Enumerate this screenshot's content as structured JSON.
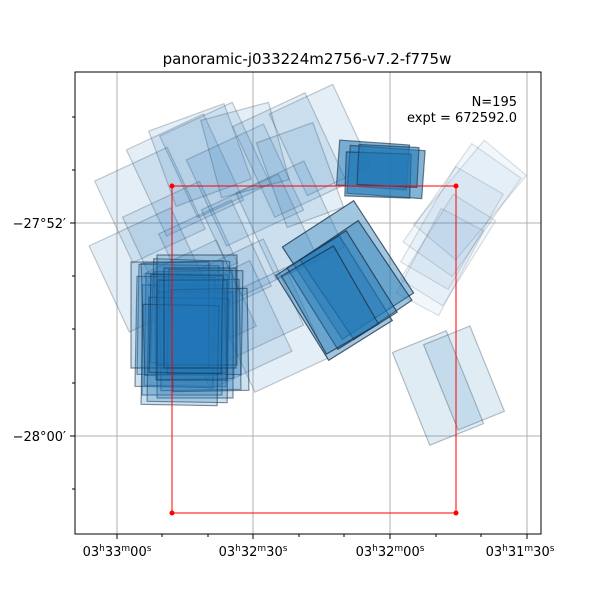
{
  "chart_data": {
    "type": "scatter",
    "title": "panoramic-j033224m2756-v7.2-f775w",
    "annotation": {
      "n_label": "N=195",
      "expt_label": "expt = 672592.0"
    },
    "grid": true,
    "x_axis": {
      "units": "RA (h m s)",
      "inverted": true,
      "range": [
        "03h33m15s",
        "03h31m26s"
      ],
      "ticks": [
        {
          "h": "03",
          "m": "33",
          "s": "00"
        },
        {
          "h": "03",
          "m": "32",
          "s": "30"
        },
        {
          "h": "03",
          "m": "32",
          "s": "00"
        },
        {
          "h": "03",
          "m": "31",
          "s": "30"
        }
      ]
    },
    "y_axis": {
      "units": "Dec",
      "range": [
        "-28d04m",
        "-27d49m"
      ],
      "ticks": [
        {
          "label": "−27°52′"
        },
        {
          "label": "−28°00′"
        }
      ]
    },
    "colors": {
      "footprint_fill": "#1f77b4",
      "footprint_edge": "#1a2f45",
      "region_box": "#ff0000",
      "grid": "#b0b0b0"
    },
    "region_box": {
      "corners": [
        {
          "ra": "03h32m47s",
          "dec": "-27d50m38s"
        },
        {
          "ra": "03h31m43s",
          "dec": "-27d50m38s"
        },
        {
          "ra": "03h31m43s",
          "dec": "-28d02m56s"
        },
        {
          "ra": "03h32m47s",
          "dec": "-28d02m56s"
        }
      ]
    },
    "footprint_groups": [
      {
        "ra_center": "03h32m52s",
        "dec_center": "-27d56m45s",
        "exposures": 18,
        "opacity": 0.85
      },
      {
        "ra_center": "03h32m10s",
        "dec_center": "-27d54m50s",
        "exposures": 6,
        "opacity": 0.9
      },
      {
        "ra_center": "03h32m04s",
        "dec_center": "-27d50m00s",
        "exposures": 4,
        "opacity": 0.6
      },
      {
        "ra_center": "03h32m30s",
        "dec_center": "-27d52m15s",
        "exposures": 40,
        "opacity": 0.3
      },
      {
        "ra_center": "03h31m49s",
        "dec_center": "-27d53m00s",
        "exposures": 10,
        "opacity": 0.1
      },
      {
        "ra_center": "03h31m47s",
        "dec_center": "-27d58m20s",
        "exposures": 6,
        "opacity": 0.15
      }
    ]
  }
}
